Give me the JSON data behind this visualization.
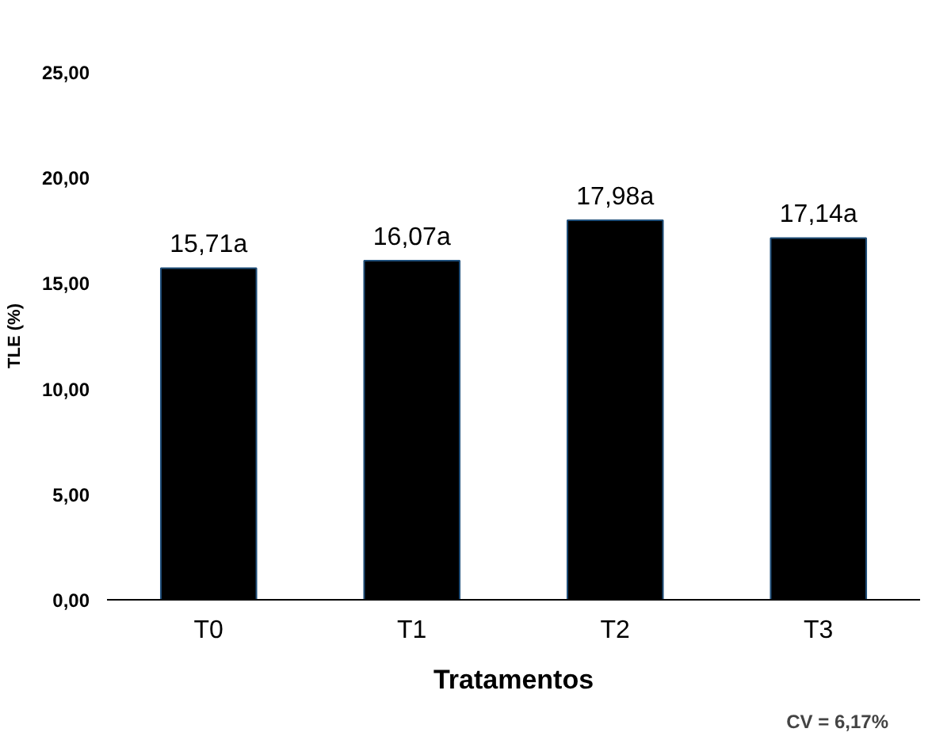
{
  "chart_data": {
    "type": "bar",
    "xlabel": "Tratamentos",
    "ylabel": "TLE (%)",
    "categories": [
      "T0",
      "T1",
      "T2",
      "T3"
    ],
    "values": [
      15.71,
      16.07,
      17.98,
      17.14
    ],
    "color": "#000000",
    "value_labels": [
      "15,71a",
      "16,07a",
      "17,98a",
      "17,14a"
    ],
    "ylim": [
      0,
      25
    ],
    "yticks": [
      {
        "value": 0,
        "label": "0,00"
      },
      {
        "value": 5,
        "label": "5,00"
      },
      {
        "value": 10,
        "label": "10,00"
      },
      {
        "value": 15,
        "label": "15,00"
      },
      {
        "value": 20,
        "label": "20,00"
      },
      {
        "value": 25,
        "label": "25,00"
      }
    ],
    "grid": false,
    "annotations": [
      "CV = 6,17%"
    ]
  }
}
